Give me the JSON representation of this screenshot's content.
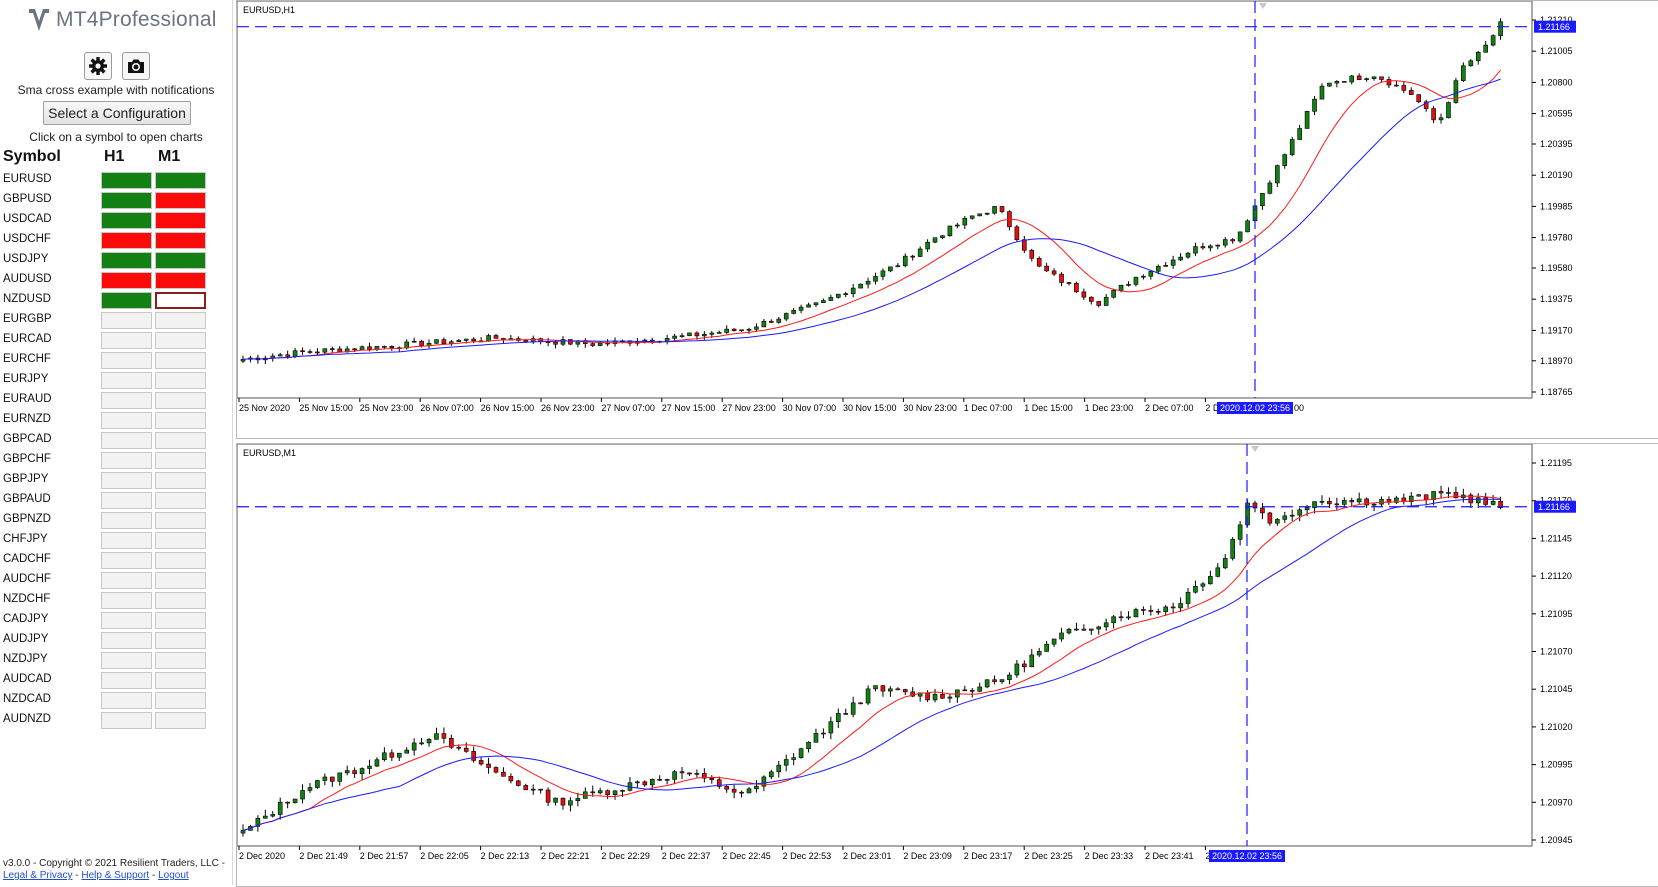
{
  "app": {
    "brand": "MT4Professional"
  },
  "sidebar": {
    "icons": [
      "gear-icon",
      "camera-icon"
    ],
    "subtitle": "Sma cross example with notifications",
    "select_config_label": "Select a Configuration",
    "hint": "Click on a symbol to open charts",
    "headers": {
      "symbol": "Symbol",
      "h1": "H1",
      "m1": "M1"
    },
    "rows": [
      {
        "symbol": "EURUSD",
        "h1": "green",
        "m1": "green"
      },
      {
        "symbol": "GBPUSD",
        "h1": "green",
        "m1": "red"
      },
      {
        "symbol": "USDCAD",
        "h1": "green",
        "m1": "red"
      },
      {
        "symbol": "USDCHF",
        "h1": "red",
        "m1": "red"
      },
      {
        "symbol": "USDJPY",
        "h1": "green",
        "m1": "green"
      },
      {
        "symbol": "AUDUSD",
        "h1": "red",
        "m1": "red"
      },
      {
        "symbol": "NZDUSD",
        "h1": "green",
        "m1": "selected"
      },
      {
        "symbol": "EURGBP",
        "h1": "empty",
        "m1": "empty"
      },
      {
        "symbol": "EURCAD",
        "h1": "empty",
        "m1": "empty"
      },
      {
        "symbol": "EURCHF",
        "h1": "empty",
        "m1": "empty"
      },
      {
        "symbol": "EURJPY",
        "h1": "empty",
        "m1": "empty"
      },
      {
        "symbol": "EURAUD",
        "h1": "empty",
        "m1": "empty"
      },
      {
        "symbol": "EURNZD",
        "h1": "empty",
        "m1": "empty"
      },
      {
        "symbol": "GBPCAD",
        "h1": "empty",
        "m1": "empty"
      },
      {
        "symbol": "GBPCHF",
        "h1": "empty",
        "m1": "empty"
      },
      {
        "symbol": "GBPJPY",
        "h1": "empty",
        "m1": "empty"
      },
      {
        "symbol": "GBPAUD",
        "h1": "empty",
        "m1": "empty"
      },
      {
        "symbol": "GBPNZD",
        "h1": "empty",
        "m1": "empty"
      },
      {
        "symbol": "CHFJPY",
        "h1": "empty",
        "m1": "empty"
      },
      {
        "symbol": "CADCHF",
        "h1": "empty",
        "m1": "empty"
      },
      {
        "symbol": "AUDCHF",
        "h1": "empty",
        "m1": "empty"
      },
      {
        "symbol": "NZDCHF",
        "h1": "empty",
        "m1": "empty"
      },
      {
        "symbol": "CADJPY",
        "h1": "empty",
        "m1": "empty"
      },
      {
        "symbol": "AUDJPY",
        "h1": "empty",
        "m1": "empty"
      },
      {
        "symbol": "NZDJPY",
        "h1": "empty",
        "m1": "empty"
      },
      {
        "symbol": "AUDCAD",
        "h1": "empty",
        "m1": "empty"
      },
      {
        "symbol": "NZDCAD",
        "h1": "empty",
        "m1": "empty"
      },
      {
        "symbol": "AUDNZD",
        "h1": "empty",
        "m1": "empty"
      }
    ],
    "footer": {
      "copyright": "v3.0.0 - Copyright © 2021 Resilient Traders, LLC - ",
      "links": [
        "Legal & Privacy",
        "Help & Support",
        "Logout"
      ]
    }
  },
  "colors": {
    "green": "#128012",
    "red": "#fb0a0a",
    "bull": "#128012",
    "bear": "#e01010",
    "ma_fast": "#ff1a1a",
    "ma_slow": "#1a1aff",
    "crosshair": "#1a1aff",
    "label_bg": "#1a1aff"
  },
  "charts": [
    {
      "id": "h1",
      "title": "EURUSD,H1",
      "y_labels": [
        "1.21210",
        "1.21005",
        "1.20800",
        "1.20595",
        "1.20395",
        "1.20190",
        "1.19985",
        "1.19780",
        "1.19580",
        "1.19375",
        "1.19170",
        "1.18970",
        "1.18765"
      ],
      "y_min": 1.18765,
      "y_max": 1.2121,
      "crosshair_price": "1.21166",
      "x_labels": [
        "25 Nov 2020",
        "25 Nov 15:00",
        "25 Nov 23:00",
        "26 Nov 07:00",
        "26 Nov 15:00",
        "26 Nov 23:00",
        "27 Nov 07:00",
        "27 Nov 15:00",
        "27 Nov 23:00",
        "30 Nov 07:00",
        "30 Nov 15:00",
        "30 Nov 23:00",
        "1 Dec 07:00",
        "1 Dec 15:00",
        "1 Dec 23:00",
        "2 Dec 07:00",
        "2 Dec"
      ],
      "time_label": "2020.12.02 23:56",
      "time_label_tail": "00"
    },
    {
      "id": "m1",
      "title": "EURUSD,M1",
      "y_labels": [
        "1.21195",
        "1.21170",
        "1.21145",
        "1.21120",
        "1.21095",
        "1.21070",
        "1.21045",
        "1.21020",
        "1.20995",
        "1.20970",
        "1.20945"
      ],
      "y_min": 1.20945,
      "y_max": 1.21195,
      "crosshair_price": "1.21166",
      "x_labels": [
        "2 Dec 2020",
        "2 Dec 21:49",
        "2 Dec 21:57",
        "2 Dec 22:05",
        "2 Dec 22:13",
        "2 Dec 22:21",
        "2 Dec 22:29",
        "2 Dec 22:37",
        "2 Dec 22:45",
        "2 Dec 22:53",
        "2 Dec 23:01",
        "2 Dec 23:09",
        "2 Dec 23:17",
        "2 Dec 23:25",
        "2 Dec 23:33",
        "2 Dec 23:41",
        "2 Dec"
      ],
      "time_label": "2020.12.02 23:56",
      "time_label_tail": ""
    }
  ]
}
